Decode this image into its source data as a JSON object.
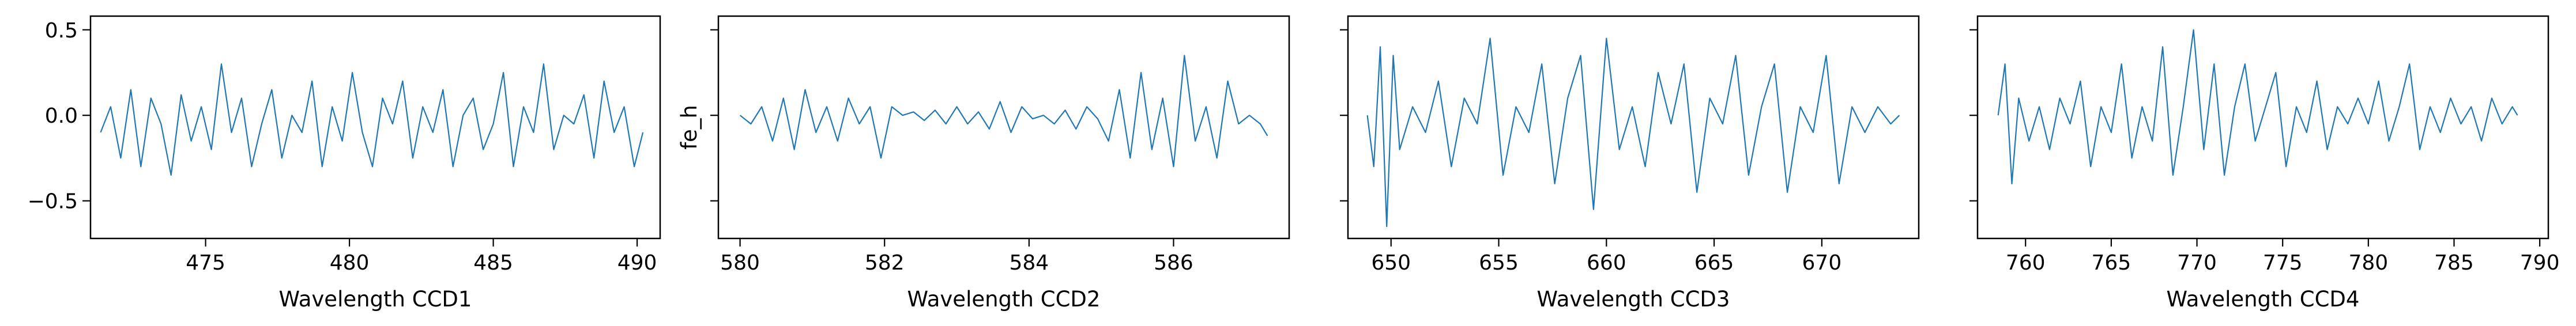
{
  "figure": {
    "background": "#ffffff",
    "line_color": "#1f77b4",
    "axis_color": "#000000",
    "shared_ylabel": "fe_h"
  },
  "chart_data": [
    {
      "type": "line",
      "title": "",
      "xlabel": "Wavelength CCD1",
      "ylabel": "",
      "xlim": [
        471.0,
        490.8
      ],
      "ylim": [
        -0.72,
        0.58
      ],
      "xticks": [
        475,
        480,
        485,
        490
      ],
      "yticks": [
        0.5,
        0.0,
        -0.5
      ],
      "ytick_labels": [
        "0.5",
        "0.0",
        "−0.5"
      ],
      "show_ytick_labels": true,
      "series": [
        {
          "x": [
            471.35,
            471.7,
            472.05,
            472.4,
            472.75,
            473.1,
            473.45,
            473.8,
            474.15,
            474.5,
            474.85,
            475.2,
            475.55,
            475.9,
            476.25,
            476.6,
            476.95,
            477.3,
            477.65,
            478.0,
            478.35,
            478.7,
            479.05,
            479.4,
            479.75,
            480.1,
            480.45,
            480.8,
            481.15,
            481.5,
            481.85,
            482.2,
            482.55,
            482.9,
            483.25,
            483.6,
            483.95,
            484.3,
            484.65,
            485.0,
            485.35,
            485.7,
            486.05,
            486.4,
            486.75,
            487.1,
            487.45,
            487.8,
            488.15,
            488.5,
            488.85,
            489.2,
            489.55,
            489.9,
            490.2
          ],
          "y": [
            -0.1,
            0.05,
            -0.25,
            0.15,
            -0.3,
            0.1,
            -0.05,
            -0.35,
            0.12,
            -0.15,
            0.05,
            -0.2,
            0.3,
            -0.1,
            0.1,
            -0.3,
            -0.05,
            0.15,
            -0.25,
            0.0,
            -0.1,
            0.2,
            -0.3,
            0.05,
            -0.15,
            0.25,
            -0.1,
            -0.3,
            0.1,
            -0.05,
            0.2,
            -0.25,
            0.05,
            -0.1,
            0.15,
            -0.3,
            0.0,
            0.1,
            -0.2,
            -0.05,
            0.25,
            -0.3,
            0.05,
            -0.1,
            0.3,
            -0.2,
            0.0,
            -0.05,
            0.12,
            -0.25,
            0.2,
            -0.1,
            0.05,
            -0.3,
            -0.1
          ]
        }
      ]
    },
    {
      "type": "line",
      "title": "",
      "xlabel": "Wavelength CCD2",
      "ylabel": "fe_h",
      "xlim": [
        579.7,
        587.6
      ],
      "ylim": [
        -0.72,
        0.58
      ],
      "xticks": [
        580,
        582,
        584,
        586
      ],
      "yticks": [
        0.5,
        0.0,
        -0.5
      ],
      "show_ytick_labels": false,
      "series": [
        {
          "x": [
            580.0,
            580.15,
            580.3,
            580.45,
            580.6,
            580.75,
            580.9,
            581.05,
            581.2,
            581.35,
            581.5,
            581.65,
            581.8,
            581.95,
            582.1,
            582.25,
            582.4,
            582.55,
            582.7,
            582.85,
            583.0,
            583.15,
            583.3,
            583.45,
            583.6,
            583.75,
            583.9,
            584.05,
            584.2,
            584.35,
            584.5,
            584.65,
            584.8,
            584.95,
            585.1,
            585.25,
            585.4,
            585.55,
            585.7,
            585.85,
            586.0,
            586.15,
            586.3,
            586.45,
            586.6,
            586.75,
            586.9,
            587.05,
            587.2,
            587.3
          ],
          "y": [
            0.0,
            -0.05,
            0.05,
            -0.15,
            0.1,
            -0.2,
            0.15,
            -0.1,
            0.05,
            -0.15,
            0.1,
            -0.05,
            0.05,
            -0.25,
            0.05,
            0.0,
            0.02,
            -0.03,
            0.03,
            -0.05,
            0.05,
            -0.05,
            0.02,
            -0.08,
            0.08,
            -0.1,
            0.05,
            -0.02,
            0.0,
            -0.05,
            0.03,
            -0.08,
            0.05,
            -0.02,
            -0.15,
            0.15,
            -0.25,
            0.25,
            -0.2,
            0.1,
            -0.3,
            0.35,
            -0.15,
            0.05,
            -0.25,
            0.2,
            -0.05,
            0.0,
            -0.05,
            -0.12
          ]
        }
      ]
    },
    {
      "type": "line",
      "title": "",
      "xlabel": "Wavelength CCD3",
      "ylabel": "",
      "xlim": [
        648.0,
        674.5
      ],
      "ylim": [
        -0.72,
        0.58
      ],
      "xticks": [
        650,
        655,
        660,
        665,
        670
      ],
      "yticks": [
        0.5,
        0.0,
        -0.5
      ],
      "show_ytick_labels": false,
      "series": [
        {
          "x": [
            648.9,
            649.2,
            649.5,
            649.8,
            650.1,
            650.4,
            651.0,
            651.6,
            652.2,
            652.8,
            653.4,
            654.0,
            654.6,
            655.2,
            655.8,
            656.4,
            657.0,
            657.6,
            658.2,
            658.8,
            659.4,
            660.0,
            660.6,
            661.2,
            661.8,
            662.4,
            663.0,
            663.6,
            664.2,
            664.8,
            665.4,
            666.0,
            666.6,
            667.2,
            667.8,
            668.4,
            669.0,
            669.6,
            670.2,
            670.8,
            671.4,
            672.0,
            672.6,
            673.2,
            673.6
          ],
          "y": [
            0.0,
            -0.3,
            0.4,
            -0.65,
            0.35,
            -0.2,
            0.05,
            -0.1,
            0.2,
            -0.3,
            0.1,
            -0.05,
            0.45,
            -0.35,
            0.05,
            -0.1,
            0.3,
            -0.4,
            0.1,
            0.35,
            -0.55,
            0.45,
            -0.2,
            0.05,
            -0.3,
            0.25,
            -0.05,
            0.3,
            -0.45,
            0.1,
            -0.05,
            0.35,
            -0.35,
            0.05,
            0.3,
            -0.45,
            0.05,
            -0.1,
            0.35,
            -0.4,
            0.05,
            -0.1,
            0.05,
            -0.05,
            0.0
          ]
        }
      ]
    },
    {
      "type": "line",
      "title": "",
      "xlabel": "Wavelength CCD4",
      "ylabel": "",
      "xlim": [
        757.2,
        790.5
      ],
      "ylim": [
        -0.72,
        0.58
      ],
      "xticks": [
        760,
        765,
        770,
        775,
        780,
        785,
        790
      ],
      "yticks": [
        0.5,
        0.0,
        -0.5
      ],
      "show_ytick_labels": false,
      "series": [
        {
          "x": [
            758.4,
            758.8,
            759.2,
            759.6,
            760.2,
            760.8,
            761.4,
            762.0,
            762.6,
            763.2,
            763.8,
            764.4,
            765.0,
            765.6,
            766.2,
            766.8,
            767.4,
            768.0,
            768.6,
            769.2,
            769.8,
            770.4,
            771.0,
            771.6,
            772.2,
            772.8,
            773.4,
            774.0,
            774.6,
            775.2,
            775.8,
            776.4,
            777.0,
            777.6,
            778.2,
            778.8,
            779.4,
            780.0,
            780.6,
            781.2,
            781.8,
            782.4,
            783.0,
            783.6,
            784.2,
            784.8,
            785.4,
            786.0,
            786.6,
            787.2,
            787.8,
            788.4,
            788.7
          ],
          "y": [
            0.0,
            0.3,
            -0.4,
            0.1,
            -0.15,
            0.05,
            -0.2,
            0.1,
            -0.05,
            0.2,
            -0.3,
            0.05,
            -0.1,
            0.3,
            -0.25,
            0.05,
            -0.15,
            0.4,
            -0.35,
            0.05,
            0.5,
            -0.2,
            0.3,
            -0.35,
            0.05,
            0.3,
            -0.15,
            0.05,
            0.25,
            -0.3,
            0.05,
            -0.1,
            0.2,
            -0.2,
            0.05,
            -0.05,
            0.1,
            -0.05,
            0.2,
            -0.15,
            0.05,
            0.3,
            -0.2,
            0.05,
            -0.1,
            0.1,
            -0.05,
            0.05,
            -0.15,
            0.1,
            -0.05,
            0.05,
            0.0
          ]
        }
      ]
    }
  ]
}
